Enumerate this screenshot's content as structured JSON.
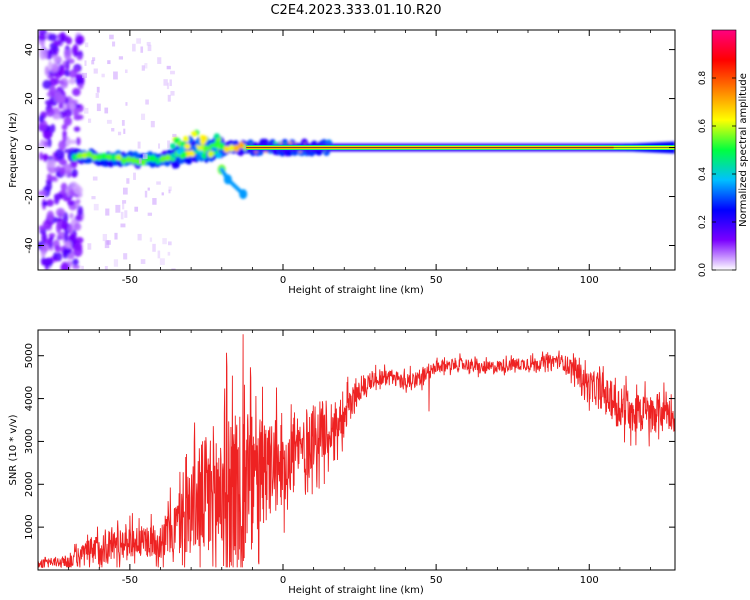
{
  "title": "C2E4.2023.333.01.10.R20",
  "chart_data": [
    {
      "type": "heatmap",
      "xlabel": "Height of straight line (km)",
      "ylabel": "Frequency (Hz)",
      "xlim": [
        -80,
        128
      ],
      "ylim": [
        -50,
        48
      ],
      "xticks": [
        -50,
        0,
        50,
        100
      ],
      "yticks": [
        -40,
        -20,
        0,
        20,
        40
      ],
      "colorbar": {
        "label": "Normalized spectral amplitude",
        "range": [
          0,
          1
        ],
        "ticks": [
          "0.0",
          "0.2",
          "0.4",
          "0.6",
          "0.8"
        ],
        "colors": [
          "#ffffff",
          "#7a00ff",
          "#0000ff",
          "#00c0ff",
          "#00ff40",
          "#ffff00",
          "#ff8000",
          "#ff0000",
          "#ff0080"
        ]
      },
      "ridge": [
        {
          "x": -68,
          "f": -3
        },
        {
          "x": -60,
          "f": -4
        },
        {
          "x": -50,
          "f": -5
        },
        {
          "x": -40,
          "f": -5
        },
        {
          "x": -34,
          "f": -3
        },
        {
          "x": -28,
          "f": -1
        },
        {
          "x": -20,
          "f": 0
        },
        {
          "x": -10,
          "f": 0
        },
        {
          "x": 0,
          "f": 0
        },
        {
          "x": 20,
          "f": 0
        },
        {
          "x": 60,
          "f": 0
        },
        {
          "x": 100,
          "f": 0
        },
        {
          "x": 128,
          "f": 0
        }
      ],
      "branch": [
        {
          "x": -20,
          "f": -9
        },
        {
          "x": -18,
          "f": -13
        },
        {
          "x": -13,
          "f": -19
        }
      ]
    },
    {
      "type": "line",
      "xlabel": "Height of straight line (km)",
      "ylabel": "SNR (10 * v/v)",
      "xlim": [
        -80,
        128
      ],
      "ylim": [
        0,
        5600
      ],
      "xticks": [
        -50,
        0,
        50,
        100
      ],
      "yticks": [
        1000,
        2000,
        3000,
        4000,
        5000
      ],
      "color": "#ee2222",
      "x": [
        -80,
        -70,
        -65,
        -60,
        -55,
        -50,
        -45,
        -40,
        -35,
        -30,
        -25,
        -20,
        -15,
        -13,
        -10,
        -5,
        0,
        5,
        10,
        15,
        20,
        25,
        30,
        35,
        40,
        45,
        50,
        55,
        60,
        65,
        70,
        75,
        80,
        85,
        90,
        95,
        100,
        105,
        110,
        115,
        120,
        125,
        128
      ],
      "y": [
        150,
        200,
        350,
        500,
        600,
        700,
        650,
        700,
        1000,
        1500,
        1700,
        1800,
        2000,
        2200,
        2000,
        2300,
        2500,
        2800,
        3100,
        3300,
        3600,
        4200,
        4500,
        4500,
        4400,
        4500,
        4700,
        4800,
        4800,
        4700,
        4750,
        4800,
        4800,
        4850,
        4900,
        4700,
        4300,
        4100,
        3800,
        3700,
        3600,
        3800,
        3500
      ],
      "spread": [
        80,
        150,
        300,
        400,
        400,
        400,
        350,
        450,
        700,
        1100,
        1500,
        1900,
        2000,
        2300,
        1600,
        1200,
        1000,
        800,
        800,
        700,
        500,
        300,
        200,
        200,
        200,
        200,
        150,
        150,
        150,
        150,
        150,
        150,
        150,
        150,
        150,
        250,
        350,
        400,
        500,
        500,
        500,
        400,
        300
      ]
    }
  ]
}
